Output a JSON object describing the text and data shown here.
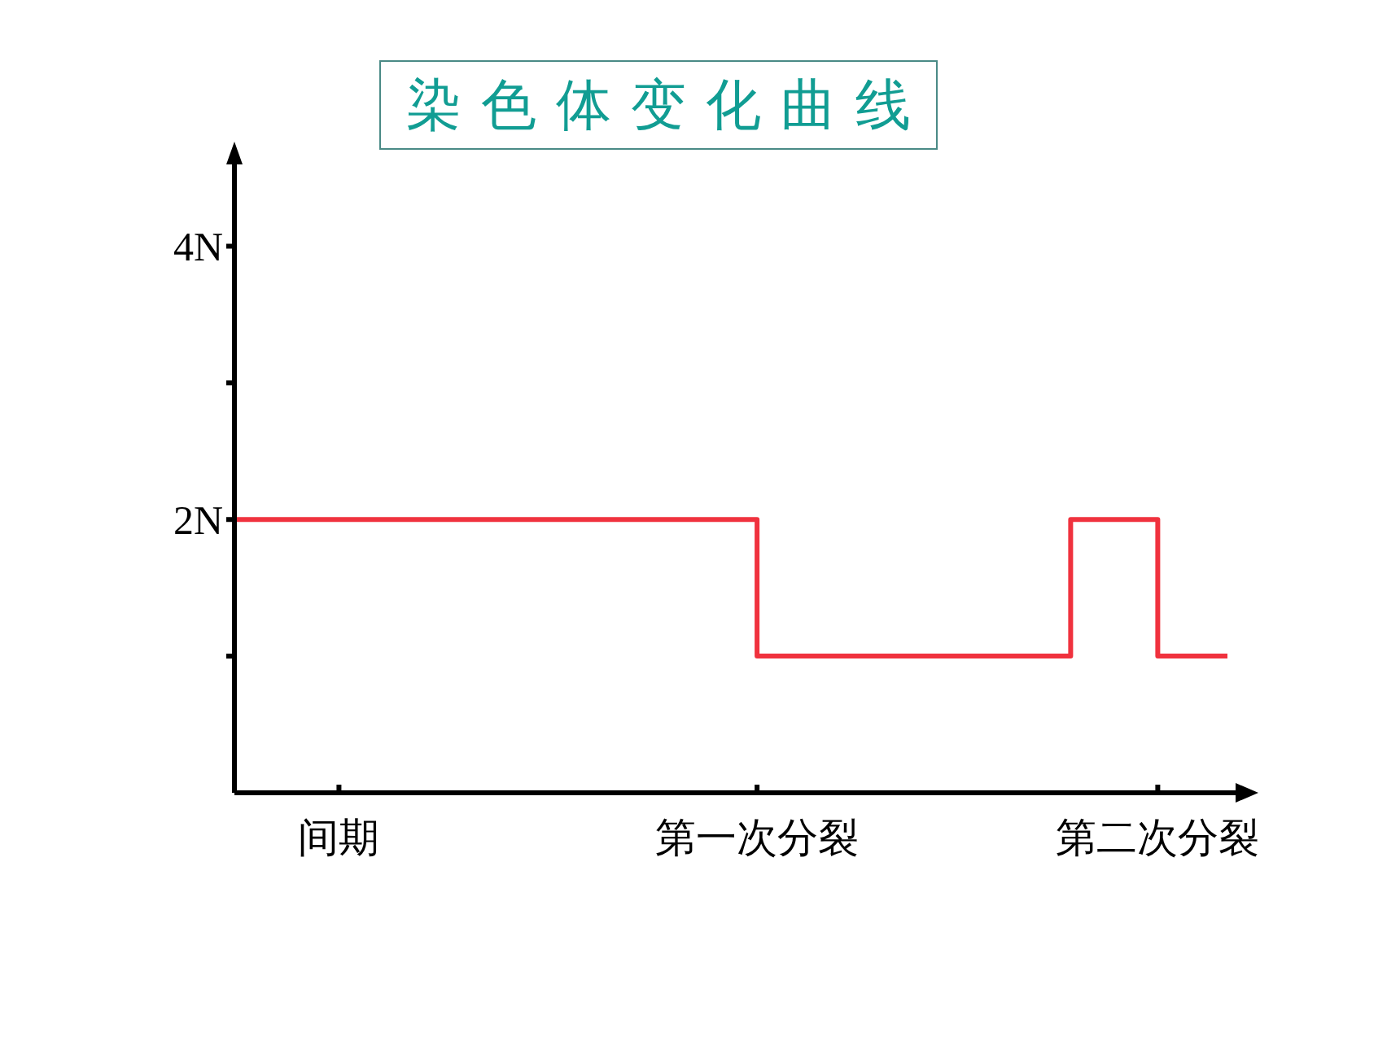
{
  "chart_data": {
    "type": "step",
    "title": "染色体变化曲线",
    "categories": [
      null,
      null,
      null,
      null,
      null,
      null,
      "间期",
      null,
      null,
      null,
      null,
      null,
      null,
      null,
      null,
      null,
      null,
      null,
      null,
      null,
      null,
      null,
      null,
      null,
      null,
      null,
      null,
      null,
      null,
      null,
      "第一次分裂",
      null,
      null,
      null,
      null,
      null,
      null,
      null,
      null,
      null,
      null,
      null,
      null,
      null,
      null,
      null,
      null,
      null,
      null,
      null,
      null,
      null,
      null,
      "第二次分裂",
      null,
      null,
      null,
      null
    ],
    "series": [
      {
        "color": "#f0323e",
        "values": [
          2,
          2,
          2,
          2,
          2,
          2,
          2,
          2,
          2,
          2,
          2,
          2,
          2,
          2,
          2,
          2,
          2,
          2,
          2,
          2,
          2,
          2,
          2,
          2,
          2,
          2,
          2,
          2,
          2,
          2,
          1,
          1,
          1,
          1,
          1,
          1,
          1,
          1,
          1,
          1,
          1,
          1,
          1,
          1,
          1,
          1,
          1,
          1,
          2,
          2,
          2,
          2,
          2,
          1,
          1,
          1,
          1,
          1
        ]
      }
    ],
    "ylim": [
      0,
      4.67
    ],
    "yticks": [
      {
        "value": 1,
        "label": null
      },
      {
        "value": 2,
        "label": "2N"
      },
      {
        "value": 3,
        "label": null
      },
      {
        "value": 4,
        "label": "4N"
      }
    ],
    "grid": false,
    "legend": false
  }
}
